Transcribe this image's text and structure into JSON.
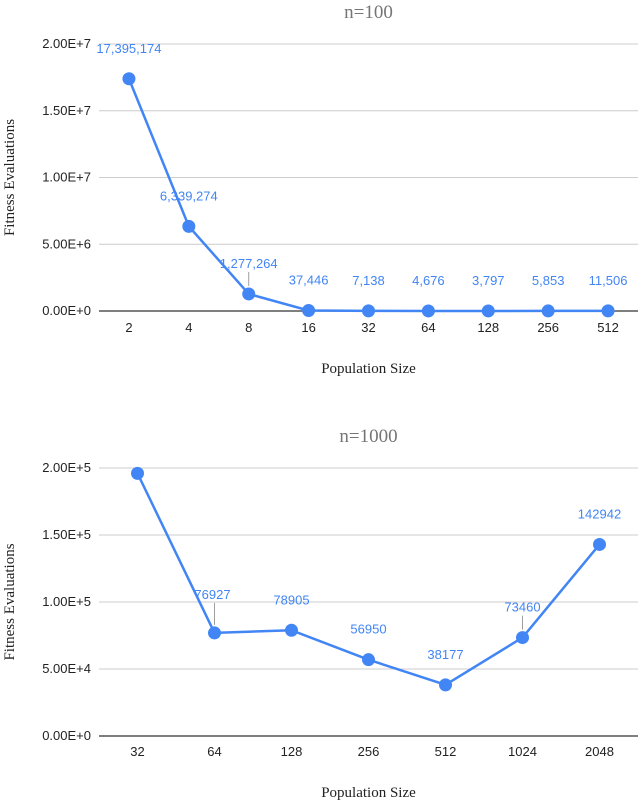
{
  "chart_data": [
    {
      "type": "line",
      "title": "n=100",
      "xlabel": "Population Size",
      "ylabel": "Fitness Evaluations",
      "categories": [
        "2",
        "4",
        "8",
        "16",
        "32",
        "64",
        "128",
        "256",
        "512"
      ],
      "values": [
        17395174,
        6339274,
        1277264,
        37446,
        7138,
        4676,
        3797,
        5853,
        11506
      ],
      "data_labels": [
        "17,395,174",
        "6,339,274",
        "1,277,264",
        "37,446",
        "7,138",
        "4,676",
        "3,797",
        "5,853",
        "11,506"
      ],
      "ylim": [
        0,
        20000000
      ],
      "yticks": [
        0,
        5000000,
        10000000,
        15000000,
        20000000
      ],
      "ytick_labels": [
        "0.00E+0",
        "5.00E+6",
        "1.00E+7",
        "1.50E+7",
        "2.00E+7"
      ],
      "grid": true,
      "legend": false,
      "color": "#4285f4"
    },
    {
      "type": "line",
      "title": "n=1000",
      "xlabel": "Population Size",
      "ylabel": "Fitness Evaluations",
      "categories": [
        "32",
        "64",
        "128",
        "256",
        "512",
        "1024",
        "2048"
      ],
      "values": [
        196000,
        76927,
        78905,
        56950,
        38177,
        73460,
        142942
      ],
      "data_labels": [
        "",
        "76927",
        "78905",
        "56950",
        "38177",
        "73460",
        "142942"
      ],
      "ylim": [
        0,
        200000
      ],
      "yticks": [
        0,
        50000,
        100000,
        150000,
        200000
      ],
      "ytick_labels": [
        "0.00E+0",
        "5.00E+4",
        "1.00E+5",
        "1.50E+5",
        "2.00E+5"
      ],
      "grid": true,
      "legend": false,
      "color": "#4285f4"
    }
  ]
}
